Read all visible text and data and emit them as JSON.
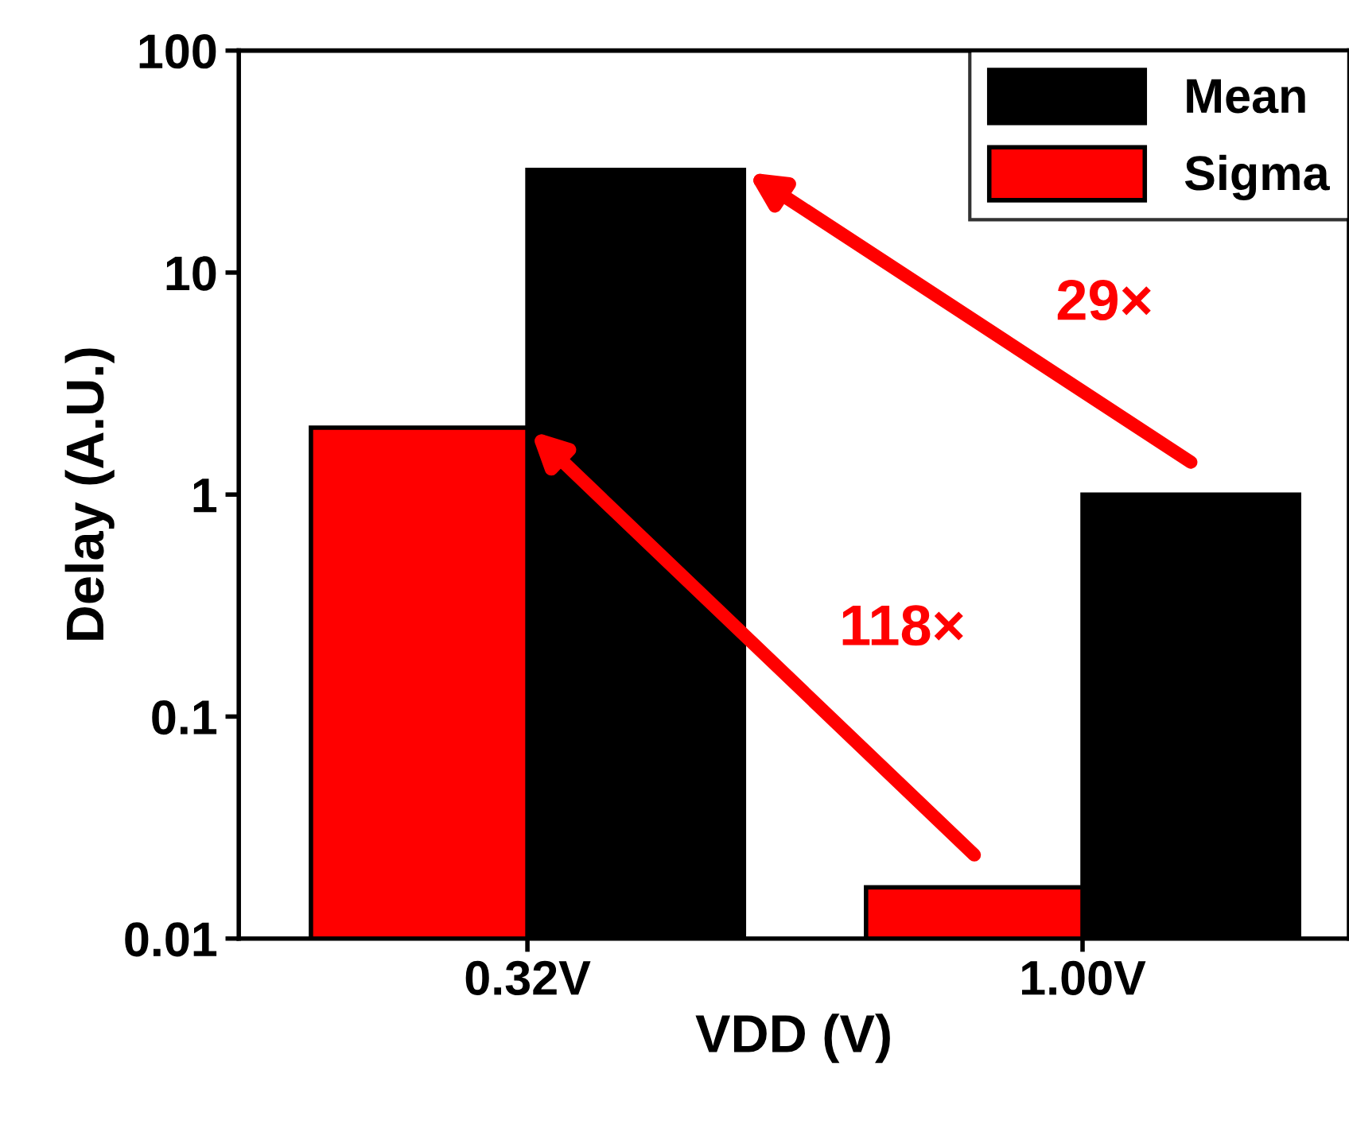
{
  "chart_data": {
    "type": "bar",
    "xlabel": "VDD (V)",
    "ylabel": "Delay (A.U.)",
    "categories": [
      "0.32V",
      "1.00V"
    ],
    "series": [
      {
        "name": "Mean",
        "color": "#000000",
        "values": [
          29,
          1
        ]
      },
      {
        "name": "Sigma",
        "color": "#ff0000",
        "values": [
          2,
          0.017
        ]
      }
    ],
    "log": "y",
    "ylim": [
      0.01,
      100
    ],
    "yticks": [
      0.01,
      0.1,
      1,
      10,
      100
    ],
    "legend": "top right",
    "grid": false,
    "annotations": [
      "29×",
      "118×"
    ]
  }
}
